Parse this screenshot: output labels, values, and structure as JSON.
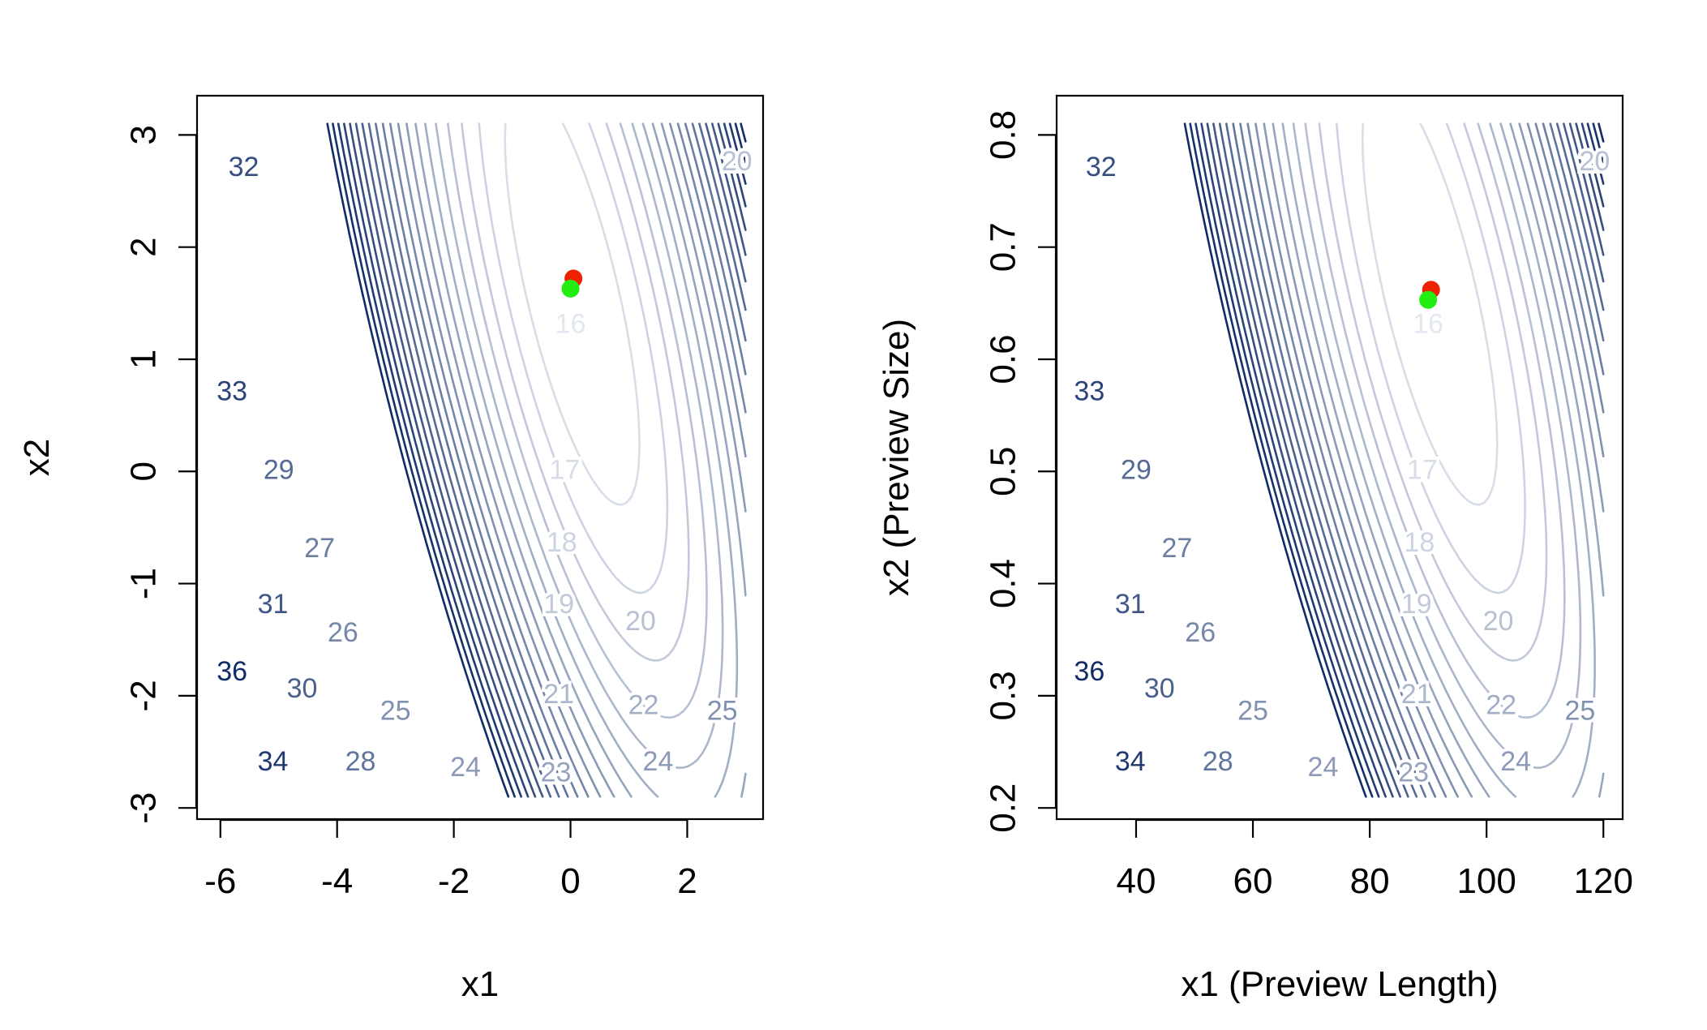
{
  "chart_data": [
    {
      "type": "contour",
      "xlabel": "x1",
      "ylabel": "x2",
      "xlim": [
        -6.4,
        3.3
      ],
      "ylim": [
        -3.1,
        3.35
      ],
      "x_ticks": [
        -6,
        -4,
        -2,
        0,
        2
      ],
      "x_tick_labels": [
        "-6",
        "-4",
        "-2",
        "0",
        "2"
      ],
      "y_ticks": [
        -3,
        -2,
        -1,
        0,
        1,
        2,
        3
      ],
      "y_tick_labels": [
        "-3",
        "-2",
        "-1",
        "0",
        "1",
        "2",
        "3"
      ],
      "domain_x": [
        -6,
        3
      ],
      "domain_y": [
        -2.9,
        3.1
      ],
      "contour_levels": [
        16,
        17,
        18,
        19,
        20,
        21,
        22,
        23,
        24,
        25,
        26,
        27,
        28,
        29,
        30,
        31,
        32,
        33,
        34,
        35,
        36
      ],
      "contour_labels": [
        {
          "text": "16",
          "x": 0.0,
          "y": 1.3
        },
        {
          "text": "17",
          "x": -0.1,
          "y": 0.0
        },
        {
          "text": "18",
          "x": -0.15,
          "y": -0.65
        },
        {
          "text": "19",
          "x": -0.2,
          "y": -1.2
        },
        {
          "text": "20",
          "x": 1.2,
          "y": -1.35
        },
        {
          "text": "20",
          "x": 2.85,
          "y": 2.75
        },
        {
          "text": "21",
          "x": -0.2,
          "y": -2.0
        },
        {
          "text": "22",
          "x": 1.25,
          "y": -2.1
        },
        {
          "text": "23",
          "x": -0.25,
          "y": -2.7
        },
        {
          "text": "24",
          "x": 1.5,
          "y": -2.6
        },
        {
          "text": "24",
          "x": -1.8,
          "y": -2.65
        },
        {
          "text": "25",
          "x": -3.0,
          "y": -2.15
        },
        {
          "text": "25",
          "x": 2.6,
          "y": -2.15
        },
        {
          "text": "26",
          "x": -3.9,
          "y": -1.45
        },
        {
          "text": "27",
          "x": -4.3,
          "y": -0.7
        },
        {
          "text": "28",
          "x": -3.6,
          "y": -2.6
        },
        {
          "text": "29",
          "x": -5.0,
          "y": 0.0
        },
        {
          "text": "30",
          "x": -4.6,
          "y": -1.95
        },
        {
          "text": "31",
          "x": -5.1,
          "y": -1.2
        },
        {
          "text": "32",
          "x": -5.6,
          "y": 2.7
        },
        {
          "text": "33",
          "x": -5.8,
          "y": 0.7
        },
        {
          "text": "34",
          "x": -5.1,
          "y": -2.6
        },
        {
          "text": "36",
          "x": -5.8,
          "y": -1.8
        }
      ],
      "points": [
        {
          "x": 0.05,
          "y": 1.72,
          "color": "#ee2200"
        },
        {
          "x": 0.0,
          "y": 1.63,
          "color": "#22ee11"
        }
      ]
    },
    {
      "type": "contour",
      "xlabel": "x1 (Preview Length)",
      "ylabel": "x2 (Preview Size)",
      "xlim": [
        26.4,
        123.3
      ],
      "ylim": [
        0.19,
        0.835
      ],
      "x_ticks": [
        40,
        60,
        80,
        100,
        120
      ],
      "x_tick_labels": [
        "40",
        "60",
        "80",
        "100",
        "120"
      ],
      "y_ticks": [
        0.2,
        0.3,
        0.4,
        0.5,
        0.6,
        0.7,
        0.8
      ],
      "y_tick_labels": [
        "0.2",
        "0.3",
        "0.4",
        "0.5",
        "0.6",
        "0.7",
        "0.8"
      ],
      "domain_x": [
        30,
        120
      ],
      "domain_y": [
        0.21,
        0.81
      ],
      "contour_levels": [
        16,
        17,
        18,
        19,
        20,
        21,
        22,
        23,
        24,
        25,
        26,
        27,
        28,
        29,
        30,
        31,
        32,
        33,
        34,
        35,
        36
      ],
      "contour_labels": [
        {
          "text": "16",
          "x": 90,
          "y": 0.63
        },
        {
          "text": "17",
          "x": 89,
          "y": 0.5
        },
        {
          "text": "18",
          "x": 88.5,
          "y": 0.435
        },
        {
          "text": "19",
          "x": 88,
          "y": 0.38
        },
        {
          "text": "20",
          "x": 102,
          "y": 0.365
        },
        {
          "text": "20",
          "x": 118.5,
          "y": 0.775
        },
        {
          "text": "21",
          "x": 88,
          "y": 0.3
        },
        {
          "text": "22",
          "x": 102.5,
          "y": 0.29
        },
        {
          "text": "23",
          "x": 87.5,
          "y": 0.23
        },
        {
          "text": "24",
          "x": 105,
          "y": 0.24
        },
        {
          "text": "24",
          "x": 72,
          "y": 0.235
        },
        {
          "text": "25",
          "x": 60,
          "y": 0.285
        },
        {
          "text": "25",
          "x": 116,
          "y": 0.285
        },
        {
          "text": "26",
          "x": 51,
          "y": 0.355
        },
        {
          "text": "27",
          "x": 47,
          "y": 0.43
        },
        {
          "text": "28",
          "x": 54,
          "y": 0.24
        },
        {
          "text": "29",
          "x": 40,
          "y": 0.5
        },
        {
          "text": "30",
          "x": 44,
          "y": 0.305
        },
        {
          "text": "31",
          "x": 39,
          "y": 0.38
        },
        {
          "text": "32",
          "x": 34,
          "y": 0.77
        },
        {
          "text": "33",
          "x": 32,
          "y": 0.57
        },
        {
          "text": "34",
          "x": 39,
          "y": 0.24
        },
        {
          "text": "36",
          "x": 32,
          "y": 0.32
        }
      ],
      "points": [
        {
          "x": 90.5,
          "y": 0.662,
          "color": "#ee2200"
        },
        {
          "x": 90.0,
          "y": 0.653,
          "color": "#22ee11"
        }
      ]
    }
  ]
}
